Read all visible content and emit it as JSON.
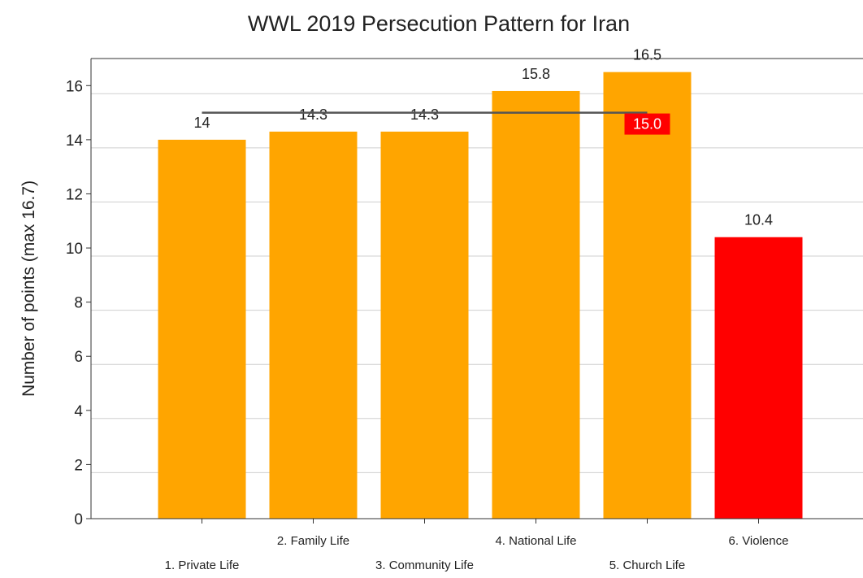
{
  "chart_data": {
    "type": "bar",
    "title": "WWL 2019 Persecution Pattern for Iran",
    "xlabel": "",
    "ylabel": "Number of points (max 16.7)",
    "ylim": [
      0,
      17
    ],
    "yticks": [
      0,
      2,
      4,
      6,
      8,
      10,
      12,
      14,
      16
    ],
    "grid": true,
    "categories": [
      "1. Private Life",
      "2. Family Life",
      "3. Community Life",
      "4. National Life",
      "5. Church Life",
      "6. Violence"
    ],
    "values": [
      14,
      14.3,
      14.3,
      15.8,
      16.5,
      10.4
    ],
    "value_labels": [
      "14",
      "14.3",
      "14.3",
      "15.8",
      "16.5",
      "10.4"
    ],
    "bar_colors": [
      "#FFA500",
      "#FFA500",
      "#FFA500",
      "#FFA500",
      "#FFA500",
      "#FF0000"
    ],
    "average_line": {
      "value": 15.0,
      "label": "15.0",
      "spans_categories": [
        "1. Private Life",
        "5. Church Life"
      ],
      "line_color": "#555555",
      "label_bg": "#FF0000",
      "label_color": "#FFFFFF"
    }
  }
}
